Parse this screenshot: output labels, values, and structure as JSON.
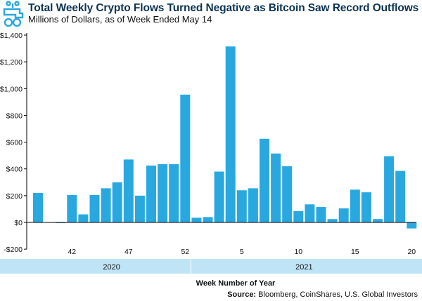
{
  "title": "Total Weekly Crypto Flows Turned Negative as Bitcoin Saw Record Outflows",
  "subtitle": "Millions of Dollars, as of Week Ended May 14",
  "logo": "faucet-with-coins-icon",
  "source_label": "Source:",
  "source_text": " Bloomberg, CoinShares, U.S. Global Investors",
  "colors": {
    "bar": "#29a8e0",
    "year_band": "#bfe4f6",
    "title": "#0c3354"
  },
  "chart_data": {
    "type": "bar",
    "title": "Total Weekly Crypto Flows Turned Negative as Bitcoin Saw Record Outflows",
    "subtitle": "Millions of Dollars, as of Week Ended May 14",
    "xlabel": "Week Number of Year",
    "ylabel": "",
    "ylim": [
      -200,
      1400
    ],
    "yticks": [
      -200,
      0,
      200,
      400,
      600,
      800,
      1000,
      1200,
      1400
    ],
    "ytick_labels": [
      "-$200",
      "$0",
      "$200",
      "$400",
      "$600",
      "$800",
      "$1,000",
      "$1,200",
      "$1,400"
    ],
    "categories": [
      "39",
      "40",
      "41",
      "42",
      "43",
      "44",
      "45",
      "46",
      "47",
      "48",
      "49",
      "50",
      "51",
      "52",
      "1",
      "2",
      "3",
      "4",
      "5",
      "6",
      "7",
      "8",
      "9",
      "10",
      "11",
      "12",
      "13",
      "14",
      "15",
      "16",
      "17",
      "18",
      "19",
      "20"
    ],
    "years": [
      "2020",
      "2020",
      "2020",
      "2020",
      "2020",
      "2020",
      "2020",
      "2020",
      "2020",
      "2020",
      "2020",
      "2020",
      "2020",
      "2020",
      "2021",
      "2021",
      "2021",
      "2021",
      "2021",
      "2021",
      "2021",
      "2021",
      "2021",
      "2021",
      "2021",
      "2021",
      "2021",
      "2021",
      "2021",
      "2021",
      "2021",
      "2021",
      "2021",
      "2021"
    ],
    "values": [
      220,
      2,
      -5,
      205,
      60,
      205,
      255,
      300,
      470,
      200,
      425,
      435,
      435,
      955,
      35,
      40,
      380,
      1315,
      240,
      255,
      625,
      515,
      420,
      85,
      135,
      115,
      25,
      105,
      245,
      225,
      25,
      495,
      385,
      -45
    ],
    "xtick_labels": [
      "42",
      "47",
      "52",
      "5",
      "10",
      "15",
      "20"
    ],
    "year_labels": [
      "2020",
      "2021"
    ],
    "grid": false,
    "legend": "none"
  }
}
